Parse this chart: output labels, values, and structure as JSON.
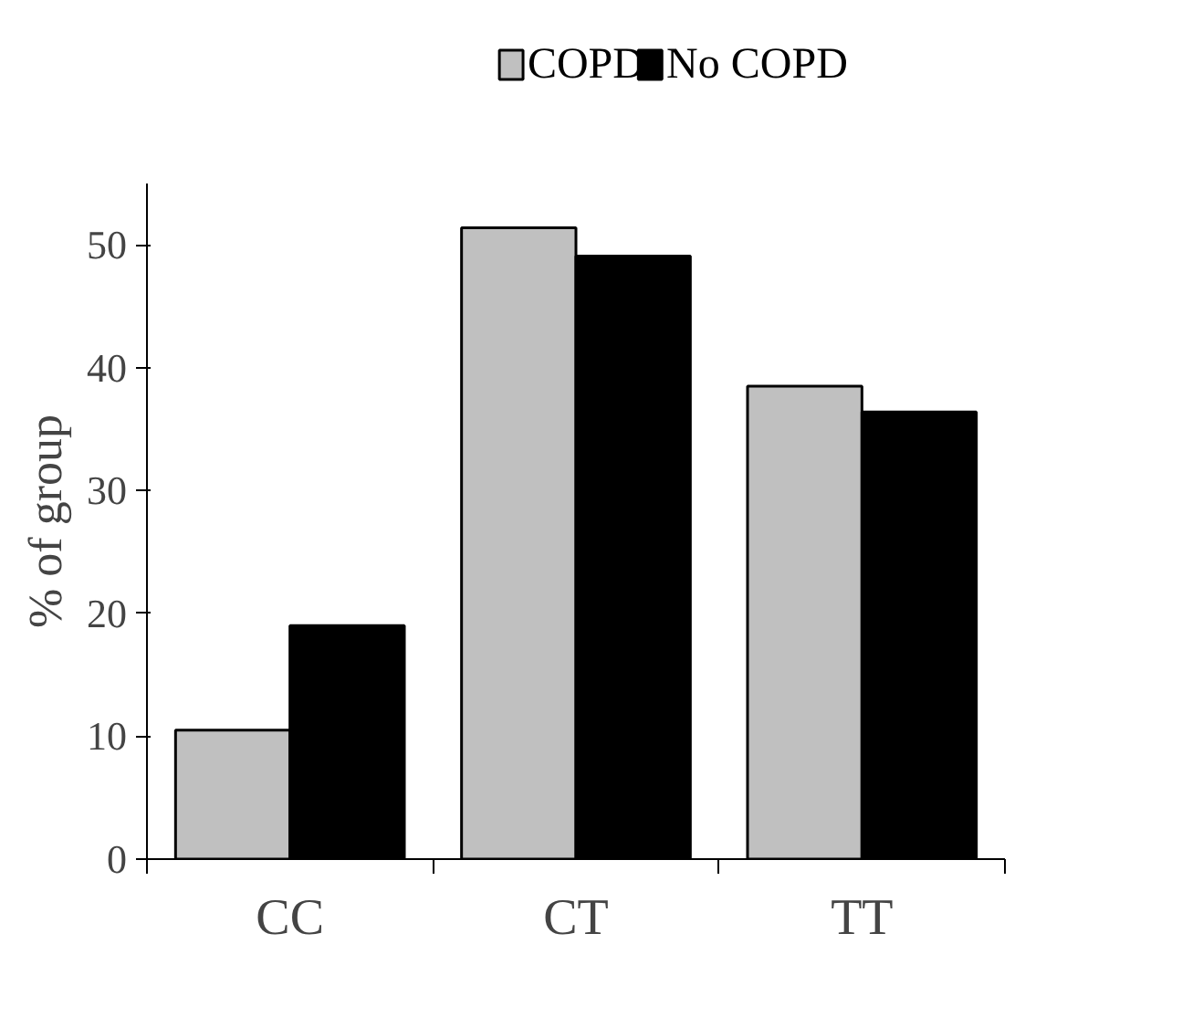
{
  "chart_data": {
    "type": "bar",
    "ylabel": "% of group",
    "categories": [
      "CC",
      "CT",
      "TT"
    ],
    "series": [
      {
        "name": "COPD",
        "color": "#c0c0c0",
        "values": [
          10.5,
          51.4,
          38.5
        ]
      },
      {
        "name": "No COPD",
        "color": "#000000",
        "values": [
          19,
          49.1,
          36.4
        ]
      }
    ],
    "ylim": [
      0,
      55
    ],
    "yticks": [
      0,
      10,
      20,
      30,
      40,
      50
    ],
    "grid": false,
    "legend": "top"
  }
}
